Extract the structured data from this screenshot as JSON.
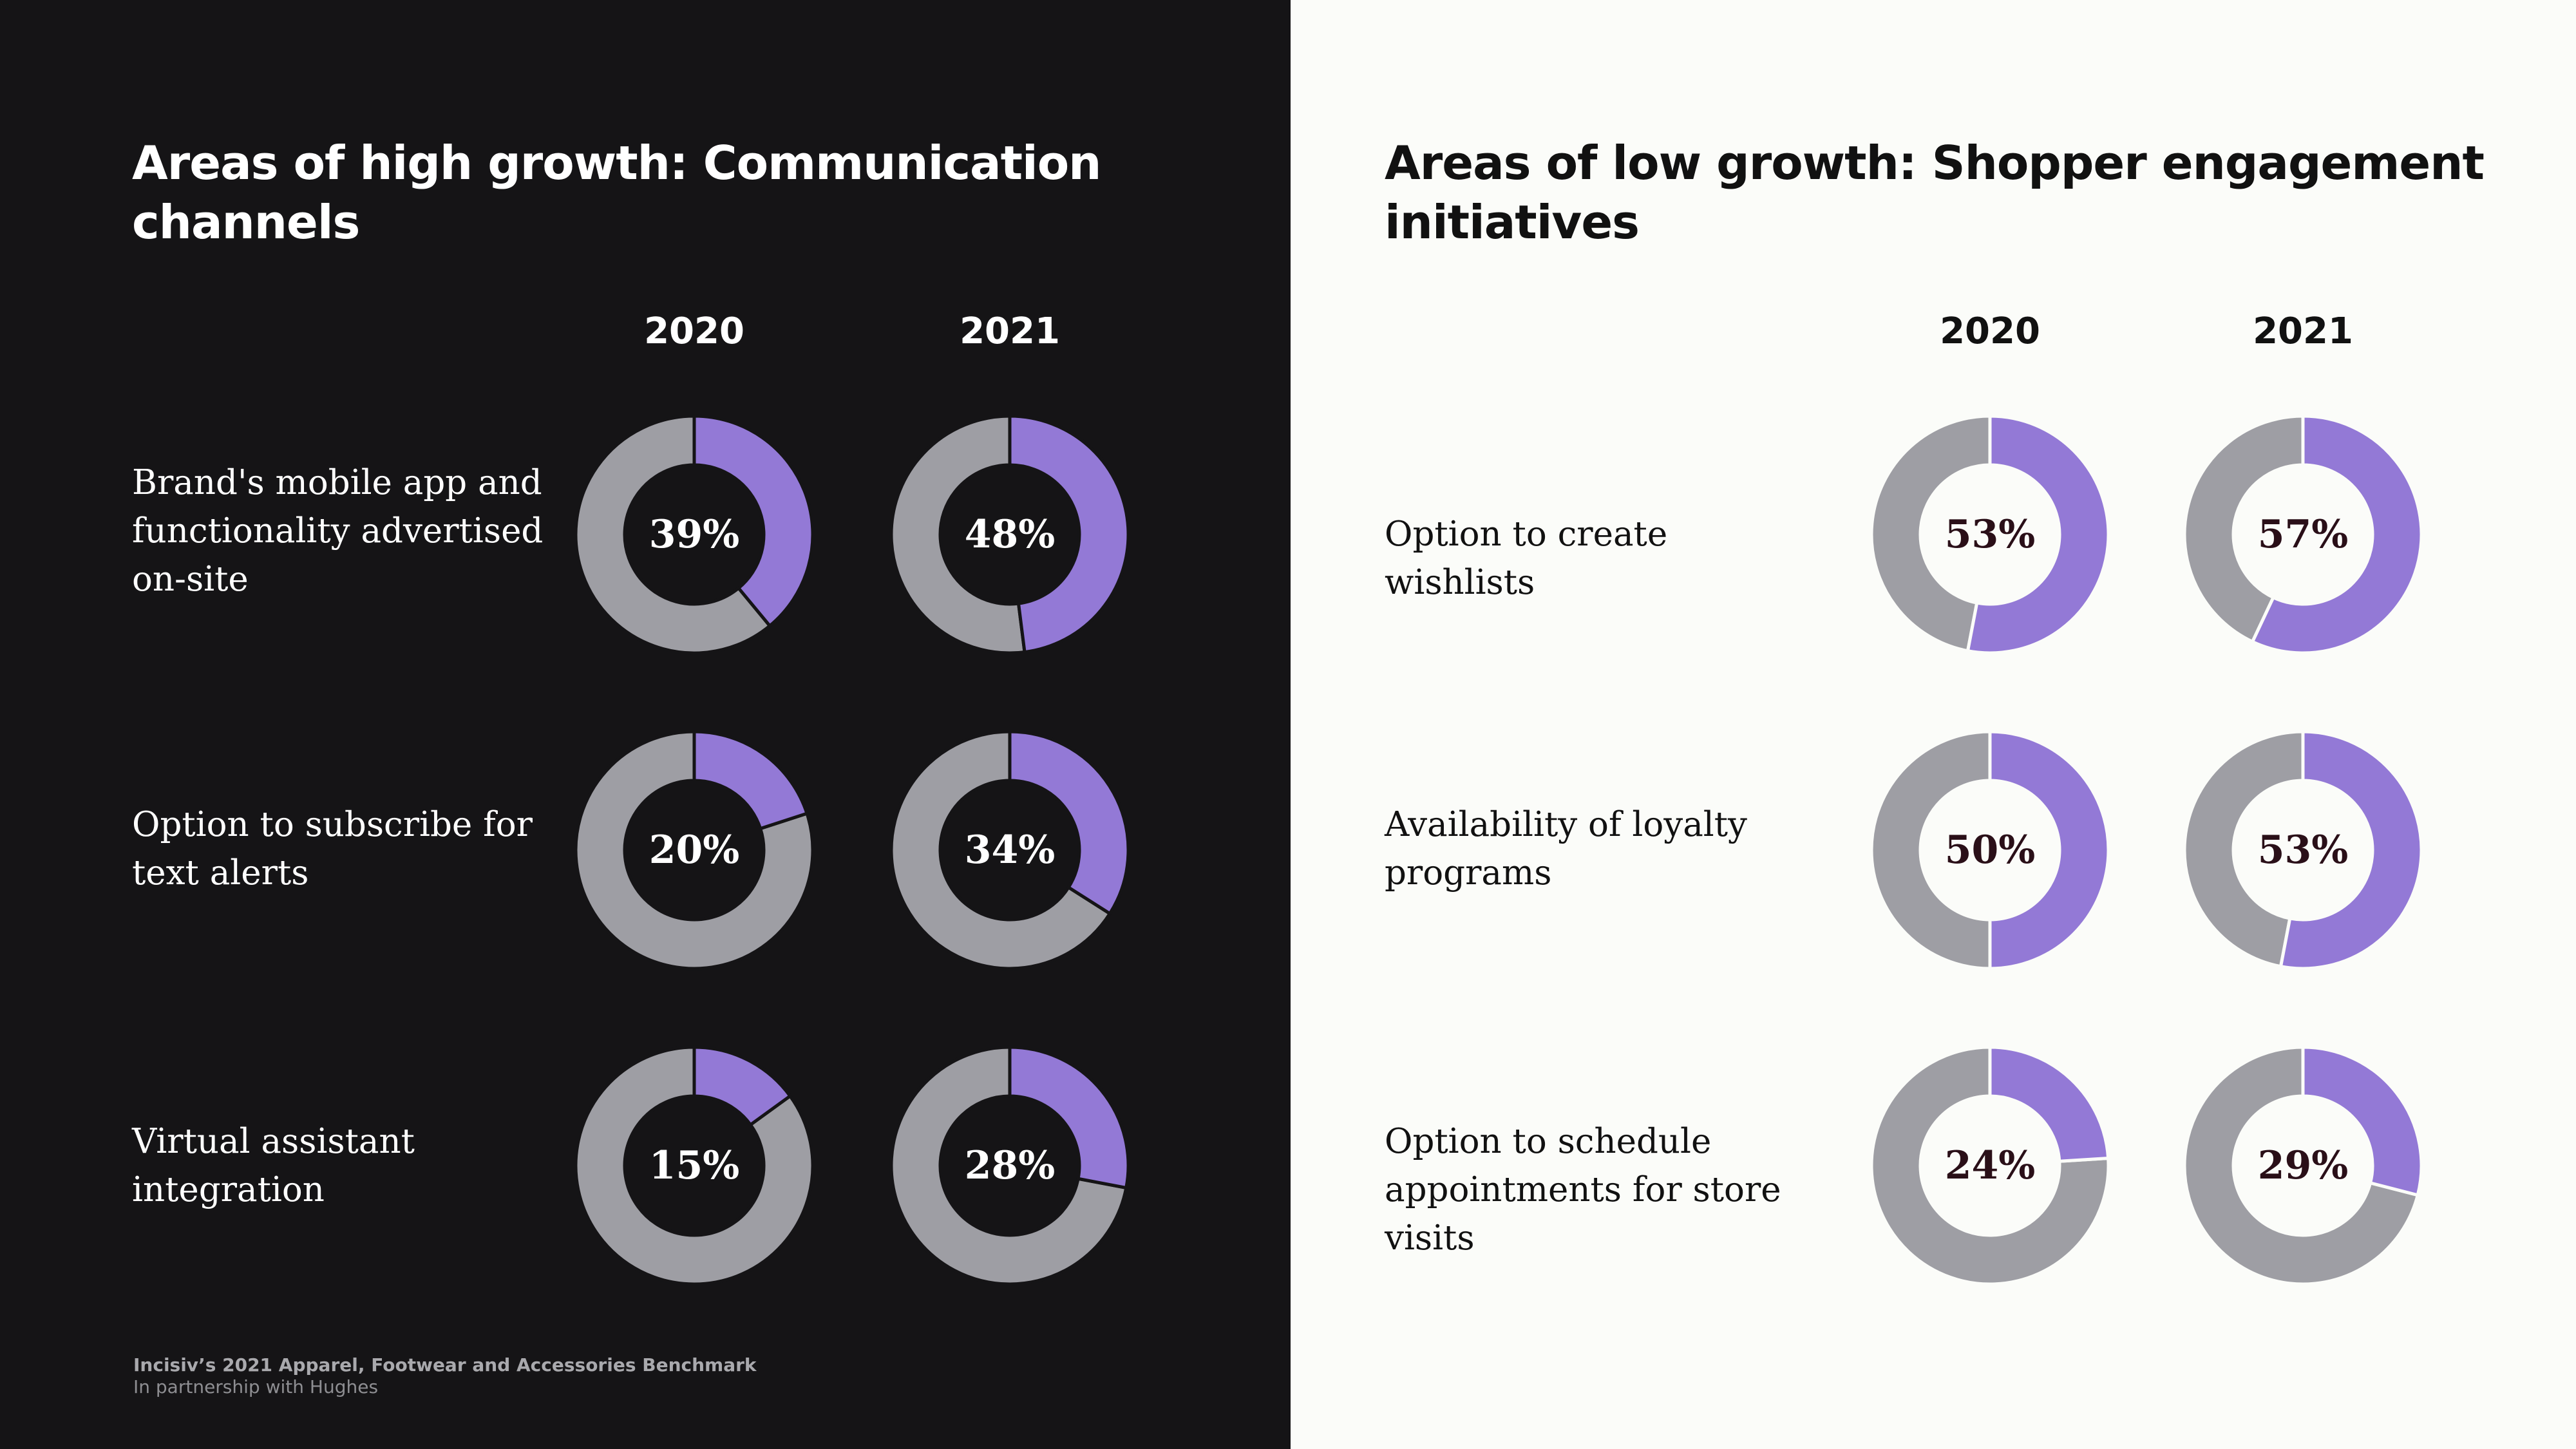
{
  "colors": {
    "highlight": "#9379d6",
    "rest": "#9e9ea4",
    "stroke_dark": "#151416",
    "stroke_light": "#fbfcf9"
  },
  "left": {
    "title": "Areas of high growth:  Communication channels",
    "year_2020": "2020",
    "year_2021": "2021",
    "rows": [
      {
        "label": "Brand's mobile app and functionality advertised on-site",
        "v2020": "39%",
        "v2021": "48%"
      },
      {
        "label": "Option to subscribe for text alerts",
        "v2020": "20%",
        "v2021": "34%"
      },
      {
        "label": "Virtual assistant integration",
        "v2020": "15%",
        "v2021": "28%"
      }
    ]
  },
  "right": {
    "title": "Areas of low growth: Shopper engagement initiatives",
    "year_2020": "2020",
    "year_2021": "2021",
    "rows": [
      {
        "label": "Option to create wishlists",
        "v2020": "53%",
        "v2021": "57%"
      },
      {
        "label": "Availability of loyalty programs",
        "v2020": "50%",
        "v2021": "53%"
      },
      {
        "label": "Option to schedule appointments for store visits",
        "v2020": "24%",
        "v2021": "29%"
      }
    ]
  },
  "footer": {
    "line1": "Incisiv’s 2021 Apparel, Footwear and Accessories Benchmark",
    "line2": "In partnership with Hughes"
  },
  "chart_data": [
    {
      "type": "donut",
      "title": "Areas of high growth:  Communication channels",
      "categories": [
        "Brand's mobile app and functionality advertised on-site",
        "Option to subscribe for text alerts",
        "Virtual assistant integration"
      ],
      "series": [
        {
          "name": "2020",
          "values": [
            39,
            20,
            15
          ]
        },
        {
          "name": "2021",
          "values": [
            48,
            34,
            28
          ]
        }
      ],
      "unit": "%"
    },
    {
      "type": "donut",
      "title": "Areas of low growth: Shopper engagement initiatives",
      "categories": [
        "Option to create wishlists",
        "Availability of loyalty programs",
        "Option to schedule appointments for store visits"
      ],
      "series": [
        {
          "name": "2020",
          "values": [
            53,
            50,
            24
          ]
        },
        {
          "name": "2021",
          "values": [
            57,
            53,
            29
          ]
        }
      ],
      "unit": "%"
    }
  ]
}
